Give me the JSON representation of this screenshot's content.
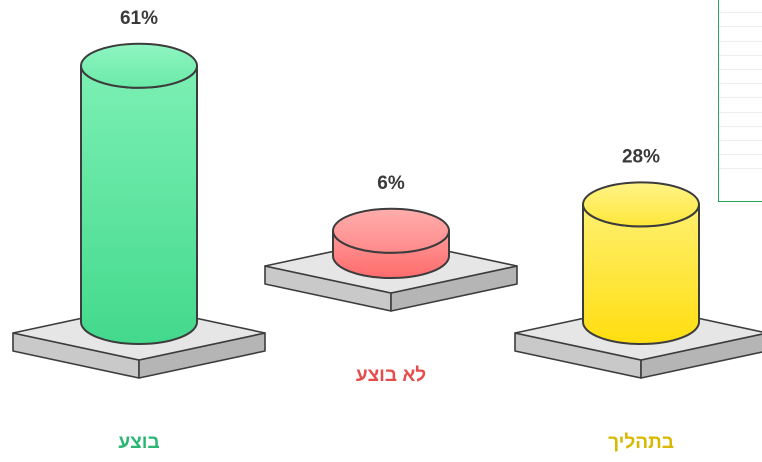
{
  "chart_data": {
    "type": "bar",
    "style": "3d-cylinders-on-pedestals",
    "categories": [
      "בוצע",
      "לא בוצע",
      "בתהליך"
    ],
    "values": [
      61,
      6,
      28
    ],
    "value_labels": [
      "61%",
      "6%",
      "28%"
    ],
    "unit": "%",
    "colors": [
      "#55e39a",
      "#ff7b7b",
      "#ffe01e"
    ],
    "label_colors": [
      "#2bb673",
      "#e74c4c",
      "#d9b800"
    ],
    "grid": false,
    "legend": "top-right (clipped)"
  }
}
